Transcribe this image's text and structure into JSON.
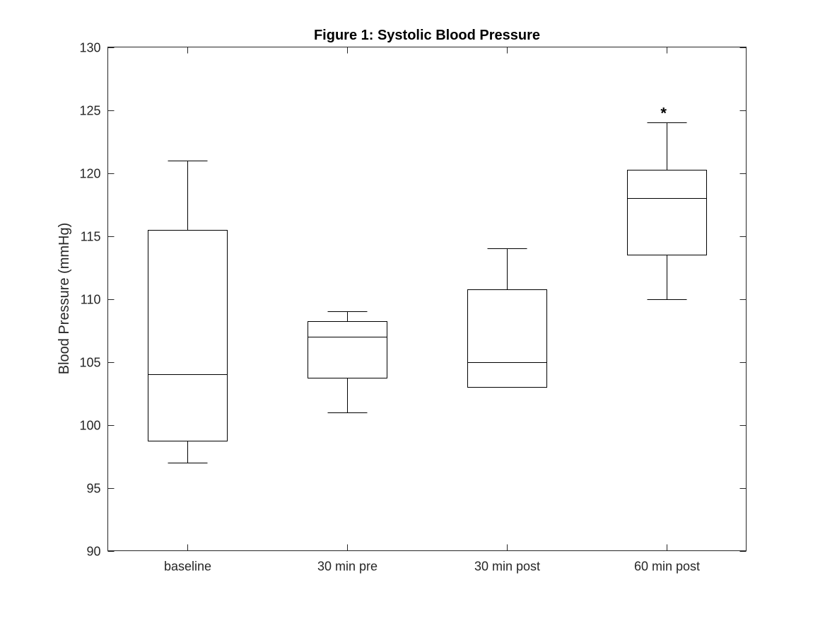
{
  "chart_data": {
    "type": "box",
    "title": "Figure 1: Systolic Blood Pressure",
    "xlabel": "",
    "ylabel": "Blood Pressure (mmHg)",
    "ylim": [
      90,
      130
    ],
    "yticks": [
      90,
      95,
      100,
      105,
      110,
      115,
      120,
      125,
      130
    ],
    "categories": [
      "baseline",
      "30 min pre",
      "30 min post",
      "60 min post"
    ],
    "boxes": [
      {
        "category": "baseline",
        "whisker_low": 97,
        "q1": 98.75,
        "median": 104,
        "q3": 115.5,
        "whisker_high": 121
      },
      {
        "category": "30 min pre",
        "whisker_low": 101,
        "q1": 103.75,
        "median": 107,
        "q3": 108.25,
        "whisker_high": 109
      },
      {
        "category": "30 min post",
        "whisker_low": 103,
        "q1": 103,
        "median": 105,
        "q3": 110.75,
        "whisker_high": 114
      },
      {
        "category": "60 min post",
        "whisker_low": 110,
        "q1": 113.5,
        "median": 118,
        "q3": 120.25,
        "whisker_high": 124
      }
    ],
    "annotations": [
      {
        "category": "60 min post",
        "text": "*",
        "y": 125
      }
    ],
    "grid": false,
    "legend": "none"
  }
}
